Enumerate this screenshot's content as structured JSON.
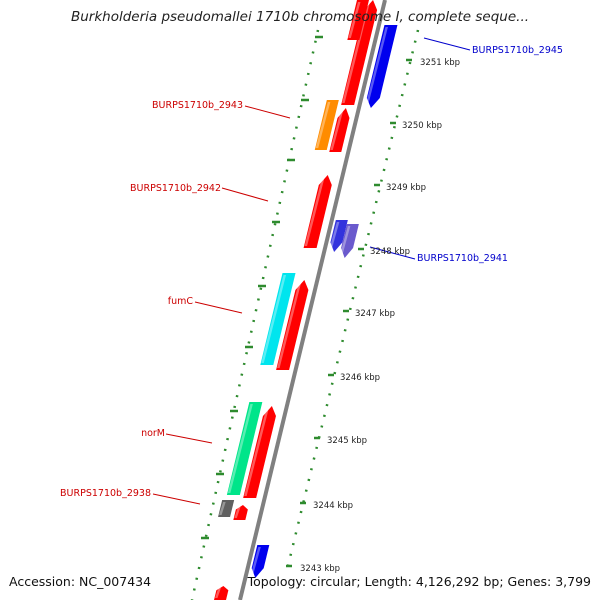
{
  "title": "Burkholderia pseudomallei 1710b chromosome I, complete seque...",
  "accession": "Accession: NC_007434",
  "topology": "Topology: circular; Length: 4,126,292 bp; Genes: 3,799",
  "colors": {
    "backbone": "#808080",
    "tick": "#2e8b2e",
    "forward_gene": "#ff0000",
    "reverse_gene": "#0000ee",
    "label_forward": "#cc0000",
    "label_reverse": "#0000cc",
    "label_kbp": "#222222"
  },
  "kbp_labels": [
    "3251 kbp",
    "3250 kbp",
    "3249 kbp",
    "3248 kbp",
    "3247 kbp",
    "3246 kbp",
    "3245 kbp",
    "3244 kbp",
    "3243 kbp"
  ],
  "gene_labels": [
    {
      "text": "BURPS1710b_2945",
      "strand": "reverse"
    },
    {
      "text": "BURPS1710b_2943",
      "strand": "forward"
    },
    {
      "text": "BURPS1710b_2942",
      "strand": "forward"
    },
    {
      "text": "BURPS1710b_2941",
      "strand": "reverse"
    },
    {
      "text": "fumC",
      "strand": "forward"
    },
    {
      "text": "norM",
      "strand": "forward"
    },
    {
      "text": "BURPS1710b_2938",
      "strand": "forward"
    }
  ],
  "genes": [
    {
      "strand": "forward",
      "ring": "outer",
      "color": "#ff0000"
    },
    {
      "strand": "forward",
      "ring": "outer",
      "color": "#ff0000"
    },
    {
      "strand": "forward",
      "ring": "inner",
      "color": "#ff8c00"
    },
    {
      "strand": "forward",
      "ring": "outer",
      "color": "#ff0000"
    },
    {
      "strand": "forward",
      "ring": "outer",
      "color": "#ff0000"
    },
    {
      "strand": "reverse",
      "ring": "outer",
      "color": "#0000ee"
    },
    {
      "strand": "reverse",
      "ring": "outer",
      "color": "#3333dd"
    },
    {
      "strand": "reverse",
      "ring": "inner",
      "color": "#6a5acd"
    },
    {
      "strand": "forward",
      "ring": "inner",
      "color": "#00e5ee"
    },
    {
      "strand": "forward",
      "ring": "outer",
      "color": "#ff0000"
    },
    {
      "strand": "forward",
      "ring": "inner",
      "color": "#00e58a"
    },
    {
      "strand": "forward",
      "ring": "outer",
      "color": "#ff0000"
    },
    {
      "strand": "forward",
      "ring": "inner",
      "color": "#606060"
    },
    {
      "strand": "forward",
      "ring": "outer",
      "color": "#ff0000"
    },
    {
      "strand": "reverse",
      "ring": "outer",
      "color": "#0000ee"
    },
    {
      "strand": "forward",
      "ring": "outer",
      "color": "#ff0000"
    }
  ]
}
